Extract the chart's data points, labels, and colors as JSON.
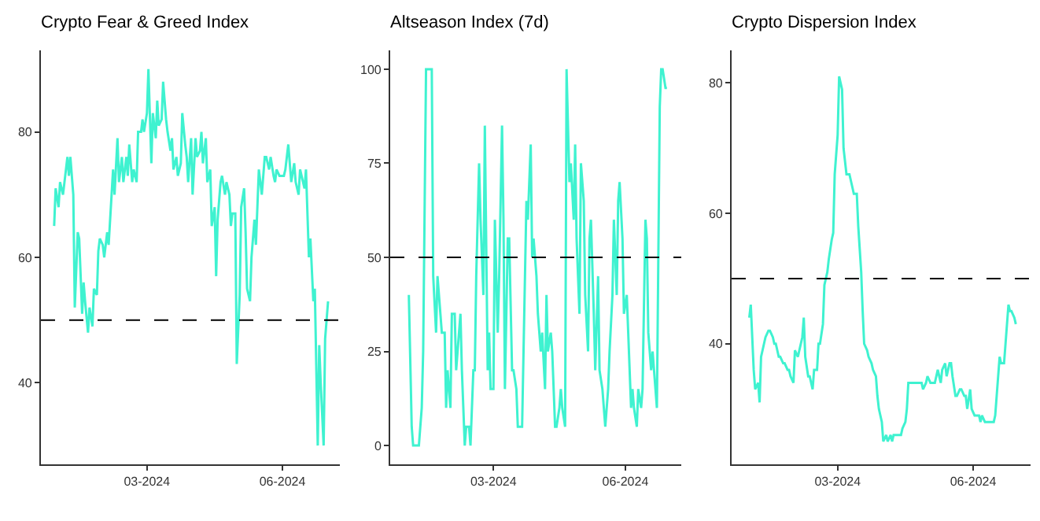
{
  "chart_data": [
    {
      "type": "line",
      "title": "Crypto Fear & Greed Index",
      "color": "#3ff2d0",
      "xlim": [
        "2023-12-20",
        "2024-07-10"
      ],
      "xticks": [
        {
          "value": "2024-03-01",
          "label": "03-2024"
        },
        {
          "value": "2024-06-01",
          "label": "06-2024"
        }
      ],
      "ylim": [
        27,
        93
      ],
      "yticks": [
        40,
        60,
        80
      ],
      "ref_lines": [
        {
          "axis": "y",
          "value": 50,
          "color": "#000000",
          "line_style": "dashed"
        }
      ],
      "x": [
        "2023-12-29",
        "2023-12-30",
        "2024-01-01",
        "2024-01-02",
        "2024-01-04",
        "2024-01-05",
        "2024-01-07",
        "2024-01-08",
        "2024-01-09",
        "2024-01-11",
        "2024-01-12",
        "2024-01-14",
        "2024-01-15",
        "2024-01-17",
        "2024-01-18",
        "2024-01-19",
        "2024-01-21",
        "2024-01-22",
        "2024-01-24",
        "2024-01-25",
        "2024-01-27",
        "2024-01-28",
        "2024-01-29",
        "2024-01-31",
        "2024-02-01",
        "2024-02-03",
        "2024-02-04",
        "2024-02-06",
        "2024-02-07",
        "2024-02-08",
        "2024-02-10",
        "2024-02-11",
        "2024-02-13",
        "2024-02-14",
        "2024-02-16",
        "2024-02-17",
        "2024-02-18",
        "2024-02-20",
        "2024-02-21",
        "2024-02-23",
        "2024-02-24",
        "2024-02-26",
        "2024-02-27",
        "2024-02-28",
        "2024-03-01",
        "2024-03-02",
        "2024-03-04",
        "2024-03-05",
        "2024-03-07",
        "2024-03-08",
        "2024-03-09",
        "2024-03-11",
        "2024-03-12",
        "2024-03-14",
        "2024-03-15",
        "2024-03-17",
        "2024-03-18",
        "2024-03-19",
        "2024-03-21",
        "2024-03-22",
        "2024-03-24",
        "2024-03-25",
        "2024-03-27",
        "2024-03-28",
        "2024-03-29",
        "2024-03-31",
        "2024-04-01",
        "2024-04-03",
        "2024-04-04",
        "2024-04-06",
        "2024-04-07",
        "2024-04-08",
        "2024-04-10",
        "2024-04-11",
        "2024-04-13",
        "2024-04-14",
        "2024-04-16",
        "2024-04-17",
        "2024-04-18",
        "2024-04-20",
        "2024-04-21",
        "2024-04-23",
        "2024-04-24",
        "2024-04-26",
        "2024-04-27",
        "2024-04-28",
        "2024-04-30",
        "2024-05-01",
        "2024-05-03",
        "2024-05-04",
        "2024-05-06",
        "2024-05-07",
        "2024-05-08",
        "2024-05-10",
        "2024-05-11",
        "2024-05-13",
        "2024-05-14",
        "2024-05-16",
        "2024-05-17",
        "2024-05-18",
        "2024-05-20",
        "2024-05-21",
        "2024-05-23",
        "2024-05-24",
        "2024-05-26",
        "2024-05-27",
        "2024-05-28",
        "2024-05-30",
        "2024-05-31",
        "2024-06-02",
        "2024-06-03",
        "2024-06-05",
        "2024-06-06",
        "2024-06-07",
        "2024-06-09",
        "2024-06-10",
        "2024-06-12",
        "2024-06-13",
        "2024-06-15",
        "2024-06-16",
        "2024-06-17",
        "2024-06-19",
        "2024-06-20",
        "2024-06-22",
        "2024-06-23",
        "2024-06-25",
        "2024-06-26",
        "2024-06-27",
        "2024-06-29",
        "2024-06-30",
        "2024-07-02"
      ],
      "values": [
        65,
        71,
        68,
        72,
        70,
        72,
        76,
        73,
        76,
        70,
        52,
        64,
        63,
        51,
        56,
        53,
        48,
        52,
        49,
        55,
        54,
        61,
        63,
        62,
        60,
        64,
        62,
        70,
        74,
        70,
        79,
        72,
        76,
        72,
        76,
        73,
        78,
        72,
        74,
        72,
        80,
        80,
        82,
        80,
        83,
        90,
        75,
        83,
        79,
        85,
        81,
        82,
        88,
        82,
        80,
        77,
        79,
        74,
        76,
        73,
        75,
        83,
        78,
        76,
        72,
        79,
        70,
        79,
        76,
        77,
        80,
        75,
        79,
        72,
        74,
        65,
        68,
        57,
        66,
        72,
        73,
        70,
        72,
        70,
        65,
        67,
        67,
        43,
        54,
        68,
        71,
        64,
        55,
        53,
        60,
        66,
        62,
        74,
        72,
        70,
        76,
        76,
        74,
        76,
        73,
        72,
        74,
        73,
        73,
        73,
        74,
        78,
        75,
        72,
        75,
        72,
        70,
        74,
        72,
        71,
        74,
        60,
        63,
        53,
        55,
        30,
        46,
        40,
        30,
        47,
        53
      ]
    },
    {
      "type": "line",
      "title": "Altseason Index (7d)",
      "color": "#3ff2d0",
      "xlim": [
        "2023-12-20",
        "2024-07-10"
      ],
      "xticks": [
        {
          "value": "2024-03-01",
          "label": "03-2024"
        },
        {
          "value": "2024-06-01",
          "label": "06-2024"
        }
      ],
      "ylim": [
        -5,
        105
      ],
      "yticks": [
        0,
        25,
        50,
        75,
        100
      ],
      "ref_lines": [
        {
          "axis": "y",
          "value": 50,
          "color": "#000000",
          "line_style": "dashed"
        }
      ],
      "x": [
        "2024-01-02",
        "2024-01-04",
        "2024-01-05",
        "2024-01-07",
        "2024-01-08",
        "2024-01-09",
        "2024-01-11",
        "2024-01-12",
        "2024-01-14",
        "2024-01-15",
        "2024-01-17",
        "2024-01-18",
        "2024-01-19",
        "2024-01-21",
        "2024-01-22",
        "2024-01-24",
        "2024-01-25",
        "2024-01-27",
        "2024-01-28",
        "2024-01-29",
        "2024-01-31",
        "2024-02-01",
        "2024-02-03",
        "2024-02-04",
        "2024-02-06",
        "2024-02-07",
        "2024-02-08",
        "2024-02-10",
        "2024-02-11",
        "2024-02-13",
        "2024-02-14",
        "2024-02-16",
        "2024-02-17",
        "2024-02-18",
        "2024-02-20",
        "2024-02-21",
        "2024-02-23",
        "2024-02-24",
        "2024-02-26",
        "2024-02-27",
        "2024-02-28",
        "2024-03-01",
        "2024-03-02",
        "2024-03-04",
        "2024-03-05",
        "2024-03-07",
        "2024-03-08",
        "2024-03-09",
        "2024-03-11",
        "2024-03-12",
        "2024-03-14",
        "2024-03-15",
        "2024-03-17",
        "2024-03-18",
        "2024-03-19",
        "2024-03-21",
        "2024-03-22",
        "2024-03-24",
        "2024-03-25",
        "2024-03-27",
        "2024-03-28",
        "2024-03-29",
        "2024-03-31",
        "2024-04-01",
        "2024-04-03",
        "2024-04-04",
        "2024-04-06",
        "2024-04-07",
        "2024-04-08",
        "2024-04-10",
        "2024-04-11",
        "2024-04-13",
        "2024-04-14",
        "2024-04-16",
        "2024-04-17",
        "2024-04-18",
        "2024-04-20",
        "2024-04-21",
        "2024-04-23",
        "2024-04-24",
        "2024-04-26",
        "2024-04-27",
        "2024-04-28",
        "2024-04-30",
        "2024-05-01",
        "2024-05-03",
        "2024-05-04",
        "2024-05-06",
        "2024-05-07",
        "2024-05-08",
        "2024-05-10",
        "2024-05-11",
        "2024-05-13",
        "2024-05-14",
        "2024-05-16",
        "2024-05-17",
        "2024-05-18",
        "2024-05-20",
        "2024-05-21",
        "2024-05-23",
        "2024-05-24",
        "2024-05-26",
        "2024-05-27",
        "2024-05-28",
        "2024-05-30",
        "2024-05-31",
        "2024-06-02",
        "2024-06-03",
        "2024-06-05",
        "2024-06-06",
        "2024-06-07",
        "2024-06-09",
        "2024-06-10",
        "2024-06-12",
        "2024-06-13",
        "2024-06-15",
        "2024-06-16",
        "2024-06-17",
        "2024-06-19",
        "2024-06-20",
        "2024-06-22",
        "2024-06-23",
        "2024-06-25",
        "2024-06-26",
        "2024-06-27",
        "2024-06-29",
        "2024-06-30"
      ],
      "values": [
        40,
        5,
        0,
        0,
        0,
        0,
        10,
        25,
        100,
        100,
        100,
        100,
        45,
        30,
        45,
        35,
        30,
        30,
        10,
        20,
        10,
        35,
        35,
        20,
        30,
        35,
        20,
        0,
        5,
        5,
        0,
        20,
        20,
        45,
        75,
        60,
        40,
        85,
        20,
        30,
        15,
        15,
        60,
        30,
        45,
        85,
        60,
        15,
        55,
        55,
        20,
        20,
        15,
        5,
        5,
        5,
        25,
        65,
        60,
        80,
        50,
        55,
        45,
        35,
        25,
        30,
        15,
        40,
        25,
        30,
        25,
        5,
        5,
        10,
        15,
        10,
        5,
        100,
        70,
        75,
        60,
        80,
        55,
        35,
        75,
        65,
        40,
        25,
        55,
        60,
        35,
        20,
        45,
        20,
        15,
        10,
        5,
        15,
        25,
        40,
        60,
        40,
        65,
        70,
        55,
        35,
        40,
        30,
        10,
        15,
        10,
        5,
        15,
        10,
        15,
        60,
        55,
        30,
        20,
        25,
        15,
        10,
        90,
        100,
        100,
        95,
        95
      ]
    },
    {
      "type": "line",
      "title": "Crypto Dispersion Index",
      "color": "#3ff2d0",
      "xlim": [
        "2023-12-20",
        "2024-07-10"
      ],
      "xticks": [
        {
          "value": "2024-03-01",
          "label": "03-2024"
        },
        {
          "value": "2024-06-01",
          "label": "06-2024"
        }
      ],
      "ylim": [
        21.5,
        85
      ],
      "yticks": [
        40,
        60,
        80
      ],
      "ref_lines": [
        {
          "axis": "y",
          "value": 50,
          "color": "#000000",
          "line_style": "dashed"
        }
      ],
      "x": [
        "2024-01-01",
        "2024-01-02",
        "2024-01-04",
        "2024-01-05",
        "2024-01-07",
        "2024-01-08",
        "2024-01-09",
        "2024-01-11",
        "2024-01-12",
        "2024-01-14",
        "2024-01-15",
        "2024-01-17",
        "2024-01-18",
        "2024-01-19",
        "2024-01-21",
        "2024-01-22",
        "2024-01-24",
        "2024-01-25",
        "2024-01-27",
        "2024-01-28",
        "2024-01-29",
        "2024-01-31",
        "2024-02-01",
        "2024-02-03",
        "2024-02-04",
        "2024-02-06",
        "2024-02-07",
        "2024-02-08",
        "2024-02-10",
        "2024-02-11",
        "2024-02-13",
        "2024-02-14",
        "2024-02-16",
        "2024-02-17",
        "2024-02-18",
        "2024-02-20",
        "2024-02-21",
        "2024-02-23",
        "2024-02-24",
        "2024-02-26",
        "2024-02-27",
        "2024-02-28",
        "2024-03-01",
        "2024-03-02",
        "2024-03-04",
        "2024-03-05",
        "2024-03-07",
        "2024-03-08",
        "2024-03-09",
        "2024-03-11",
        "2024-03-12",
        "2024-03-14",
        "2024-03-15",
        "2024-03-17",
        "2024-03-18",
        "2024-03-19",
        "2024-03-21",
        "2024-03-22",
        "2024-03-24",
        "2024-03-25",
        "2024-03-27",
        "2024-03-28",
        "2024-03-29",
        "2024-03-31",
        "2024-04-01",
        "2024-04-03",
        "2024-04-04",
        "2024-04-06",
        "2024-04-07",
        "2024-04-08",
        "2024-04-10",
        "2024-04-11",
        "2024-04-13",
        "2024-04-14",
        "2024-04-16",
        "2024-04-17",
        "2024-04-18",
        "2024-04-20",
        "2024-04-21",
        "2024-04-23",
        "2024-04-24",
        "2024-04-26",
        "2024-04-27",
        "2024-04-28",
        "2024-04-30",
        "2024-05-01",
        "2024-05-03",
        "2024-05-04",
        "2024-05-06",
        "2024-05-07",
        "2024-05-08",
        "2024-05-10",
        "2024-05-11",
        "2024-05-13",
        "2024-05-14",
        "2024-05-16",
        "2024-05-17",
        "2024-05-18",
        "2024-05-20",
        "2024-05-21",
        "2024-05-23",
        "2024-05-24",
        "2024-05-26",
        "2024-05-27",
        "2024-05-28",
        "2024-05-30",
        "2024-05-31",
        "2024-06-02",
        "2024-06-03",
        "2024-06-05",
        "2024-06-06",
        "2024-06-07",
        "2024-06-09",
        "2024-06-10",
        "2024-06-12",
        "2024-06-13",
        "2024-06-15",
        "2024-06-16",
        "2024-06-17",
        "2024-06-19",
        "2024-06-20",
        "2024-06-22",
        "2024-06-23",
        "2024-06-25",
        "2024-06-26",
        "2024-06-27",
        "2024-06-29",
        "2024-06-30"
      ],
      "values": [
        44,
        46,
        36,
        33,
        34,
        31,
        38,
        40,
        41,
        42,
        42,
        41,
        40,
        40,
        38,
        38,
        37,
        37,
        36,
        36,
        35,
        34,
        39,
        38,
        39,
        41,
        44,
        38,
        35,
        35,
        33,
        36,
        36,
        40,
        40,
        43,
        49,
        51,
        53,
        56,
        57,
        66,
        72,
        81,
        79,
        70,
        66,
        66,
        66,
        64,
        63,
        63,
        58,
        51,
        45,
        40,
        39,
        38,
        37,
        36,
        35,
        32,
        30,
        28,
        25,
        26,
        25,
        26,
        25,
        26,
        26,
        26,
        26,
        27,
        28,
        30,
        34,
        34,
        34,
        34,
        34,
        34,
        34,
        33,
        34,
        35,
        34,
        34,
        34,
        35,
        36,
        34,
        36,
        37,
        35,
        37,
        37,
        35,
        32,
        32,
        33,
        33,
        32,
        32,
        30,
        33,
        30,
        29,
        29,
        29,
        28,
        29,
        28,
        28,
        28,
        28,
        28,
        29,
        32,
        38,
        37,
        37,
        40,
        46,
        45,
        45,
        44,
        43
      ]
    }
  ]
}
